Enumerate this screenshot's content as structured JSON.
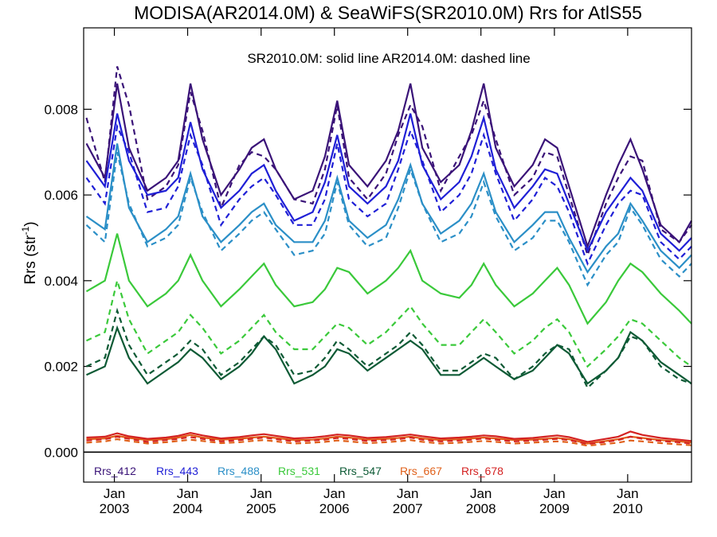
{
  "chart_data": {
    "type": "line",
    "title": "MODISA(AR2014.0M) & SeaWiFS(SR2010.0M)  Rrs for AtlS55",
    "annotation": "SR2010.0M: solid line   AR2014.0M: dashed line",
    "ylabel_main": "Rrs (str",
    "ylabel_sup": "-1",
    "ylabel_close": ")",
    "ylim": [
      -0.0007,
      0.0099
    ],
    "yticks": [
      {
        "value": 0.0,
        "label": "0.000"
      },
      {
        "value": 0.002,
        "label": "0.002"
      },
      {
        "value": 0.004,
        "label": "0.004"
      },
      {
        "value": 0.006,
        "label": "0.006"
      },
      {
        "value": 0.008,
        "label": "0.008"
      }
    ],
    "xlim": [
      "2002-08-01",
      "2010-11-15"
    ],
    "xticks": [
      {
        "date": "2003-01-01",
        "month": "Jan",
        "year": "2003"
      },
      {
        "date": "2004-01-01",
        "month": "Jan",
        "year": "2004"
      },
      {
        "date": "2005-01-01",
        "month": "Jan",
        "year": "2005"
      },
      {
        "date": "2006-01-01",
        "month": "Jan",
        "year": "2006"
      },
      {
        "date": "2007-01-01",
        "month": "Jan",
        "year": "2007"
      },
      {
        "date": "2008-01-01",
        "month": "Jan",
        "year": "2008"
      },
      {
        "date": "2009-01-01",
        "month": "Jan",
        "year": "2009"
      },
      {
        "date": "2010-01-01",
        "month": "Jan",
        "year": "2010"
      }
    ],
    "legend_placement": "bottom",
    "dates": [
      "2002-08",
      "2002-11",
      "2003-01",
      "2003-03",
      "2003-06",
      "2003-09",
      "2003-11",
      "2004-01",
      "2004-03",
      "2004-06",
      "2004-09",
      "2004-11",
      "2005-01",
      "2005-03",
      "2005-06",
      "2005-09",
      "2005-11",
      "2006-01",
      "2006-03",
      "2006-06",
      "2006-09",
      "2006-11",
      "2007-01",
      "2007-03",
      "2007-06",
      "2007-09",
      "2007-11",
      "2008-01",
      "2008-03",
      "2008-06",
      "2008-09",
      "2008-11",
      "2009-01",
      "2009-03",
      "2009-06",
      "2009-09",
      "2009-11",
      "2010-01",
      "2010-03",
      "2010-06",
      "2010-09",
      "2010-11"
    ],
    "series": [
      {
        "name": "Rrs_412",
        "color": "#3a1378",
        "solid": [
          0.0072,
          0.0064,
          0.0086,
          0.0071,
          0.0061,
          0.0064,
          0.0068,
          0.0086,
          0.0073,
          0.006,
          0.0066,
          0.0071,
          0.0073,
          0.0066,
          0.0059,
          0.0061,
          0.0069,
          0.0082,
          0.0067,
          0.0062,
          0.0068,
          0.0075,
          0.0086,
          0.0071,
          0.0063,
          0.0067,
          0.0075,
          0.0086,
          0.0071,
          0.0062,
          0.0067,
          0.0073,
          0.0071,
          0.0062,
          0.0048,
          0.006,
          0.0067,
          0.0073,
          0.0066,
          0.0053,
          0.0049,
          0.0054
        ],
        "dashed": [
          0.0078,
          0.0063,
          0.009,
          0.0081,
          0.0059,
          0.0062,
          0.0067,
          0.0084,
          0.0075,
          0.0057,
          0.0067,
          0.007,
          0.0069,
          0.0066,
          0.0059,
          0.0058,
          0.0066,
          0.0081,
          0.0064,
          0.0059,
          0.0065,
          0.0074,
          0.0081,
          0.0076,
          0.0061,
          0.0069,
          0.0074,
          0.0082,
          0.0073,
          0.006,
          0.0064,
          0.007,
          0.0069,
          0.006,
          0.0046,
          0.0058,
          0.0064,
          0.0069,
          0.0068,
          0.0052,
          0.0049,
          0.0053
        ]
      },
      {
        "name": "Rrs_443",
        "color": "#1f1fd6",
        "solid": [
          0.0068,
          0.0062,
          0.0079,
          0.0068,
          0.006,
          0.0061,
          0.0064,
          0.0077,
          0.0066,
          0.0057,
          0.0061,
          0.0065,
          0.0067,
          0.0061,
          0.0054,
          0.0056,
          0.0063,
          0.0074,
          0.0062,
          0.0058,
          0.0062,
          0.0068,
          0.0079,
          0.0067,
          0.0059,
          0.0063,
          0.0069,
          0.0078,
          0.0066,
          0.0057,
          0.0062,
          0.0066,
          0.0065,
          0.0058,
          0.0047,
          0.0056,
          0.006,
          0.0064,
          0.0061,
          0.0051,
          0.0047,
          0.005
        ],
        "dashed": [
          0.0064,
          0.0058,
          0.0076,
          0.007,
          0.0056,
          0.0057,
          0.0062,
          0.0074,
          0.0067,
          0.0053,
          0.0059,
          0.0062,
          0.0064,
          0.006,
          0.0053,
          0.0053,
          0.0059,
          0.0072,
          0.0059,
          0.0055,
          0.0058,
          0.0066,
          0.0075,
          0.0068,
          0.0056,
          0.006,
          0.0065,
          0.0074,
          0.0065,
          0.0054,
          0.0059,
          0.0064,
          0.0062,
          0.0056,
          0.0044,
          0.0053,
          0.0058,
          0.0061,
          0.006,
          0.0049,
          0.0045,
          0.0048
        ]
      },
      {
        "name": "Rrs_488",
        "color": "#2b8fc7",
        "solid": [
          0.0055,
          0.0052,
          0.0072,
          0.0057,
          0.0049,
          0.0052,
          0.0055,
          0.0065,
          0.0055,
          0.0049,
          0.0053,
          0.0056,
          0.0058,
          0.0053,
          0.0049,
          0.0049,
          0.0054,
          0.0064,
          0.0054,
          0.005,
          0.0053,
          0.0059,
          0.0067,
          0.0058,
          0.0051,
          0.0054,
          0.0058,
          0.0065,
          0.0056,
          0.0049,
          0.0053,
          0.0056,
          0.0056,
          0.005,
          0.0042,
          0.0048,
          0.0051,
          0.0058,
          0.0054,
          0.0047,
          0.0043,
          0.0046
        ],
        "dashed": [
          0.0053,
          0.0049,
          0.007,
          0.0058,
          0.0048,
          0.005,
          0.0053,
          0.0064,
          0.0056,
          0.0047,
          0.0051,
          0.0054,
          0.0056,
          0.0052,
          0.0046,
          0.0047,
          0.0051,
          0.0063,
          0.0053,
          0.0048,
          0.005,
          0.0057,
          0.0066,
          0.0058,
          0.0049,
          0.0051,
          0.0055,
          0.0063,
          0.0055,
          0.0047,
          0.005,
          0.0054,
          0.0054,
          0.0049,
          0.0039,
          0.0046,
          0.0049,
          0.0057,
          0.0053,
          0.0045,
          0.0041,
          0.0044
        ]
      },
      {
        "name": "Rrs_531",
        "color": "#3ac93a",
        "solid": [
          0.00375,
          0.004,
          0.0051,
          0.004,
          0.0034,
          0.0037,
          0.004,
          0.0046,
          0.004,
          0.0034,
          0.0038,
          0.0041,
          0.0044,
          0.0039,
          0.0034,
          0.0035,
          0.0038,
          0.0043,
          0.0042,
          0.0037,
          0.004,
          0.0043,
          0.0047,
          0.004,
          0.0037,
          0.0036,
          0.0039,
          0.0044,
          0.0039,
          0.0034,
          0.0037,
          0.004,
          0.0043,
          0.0039,
          0.003,
          0.0035,
          0.004,
          0.0044,
          0.0042,
          0.0037,
          0.0033,
          0.003
        ],
        "dashed": [
          0.0026,
          0.0028,
          0.004,
          0.0031,
          0.0023,
          0.0026,
          0.0028,
          0.0032,
          0.0029,
          0.0023,
          0.0026,
          0.0029,
          0.0032,
          0.0028,
          0.0024,
          0.0024,
          0.0027,
          0.003,
          0.0029,
          0.0025,
          0.0028,
          0.0031,
          0.0034,
          0.003,
          0.0025,
          0.0025,
          0.0028,
          0.0031,
          0.0028,
          0.0023,
          0.0026,
          0.0029,
          0.0031,
          0.0028,
          0.002,
          0.0024,
          0.0027,
          0.0031,
          0.003,
          0.0026,
          0.0022,
          0.002
        ]
      },
      {
        "name": "Rrs_547",
        "color": "#0d5a35",
        "solid": [
          0.0018,
          0.002,
          0.0029,
          0.0022,
          0.0016,
          0.0019,
          0.0021,
          0.0024,
          0.0022,
          0.0017,
          0.002,
          0.0023,
          0.0027,
          0.0024,
          0.0016,
          0.0018,
          0.002,
          0.0024,
          0.0023,
          0.0019,
          0.0022,
          0.0024,
          0.0026,
          0.0024,
          0.0018,
          0.0018,
          0.002,
          0.0022,
          0.002,
          0.0017,
          0.0019,
          0.0022,
          0.0025,
          0.0023,
          0.0016,
          0.0019,
          0.0022,
          0.0028,
          0.0026,
          0.0021,
          0.0018,
          0.0016
        ],
        "dashed": [
          0.002,
          0.0022,
          0.0033,
          0.0025,
          0.0018,
          0.0021,
          0.0023,
          0.0026,
          0.0024,
          0.0018,
          0.0021,
          0.0024,
          0.0027,
          0.0025,
          0.0018,
          0.0019,
          0.0022,
          0.0026,
          0.0024,
          0.002,
          0.0023,
          0.0025,
          0.0028,
          0.0025,
          0.0019,
          0.0019,
          0.0021,
          0.0023,
          0.0022,
          0.0017,
          0.002,
          0.0023,
          0.0025,
          0.0024,
          0.0015,
          0.0019,
          0.0022,
          0.0027,
          0.0026,
          0.002,
          0.0017,
          0.0016
        ]
      },
      {
        "name": "Rrs_667",
        "color": "#e0601a",
        "solid": [
          0.0003,
          0.00032,
          0.00038,
          0.00033,
          0.00028,
          0.0003,
          0.00034,
          0.0004,
          0.00034,
          0.00029,
          0.00031,
          0.00034,
          0.00036,
          0.00033,
          0.00028,
          0.00029,
          0.00032,
          0.00036,
          0.00034,
          0.00029,
          0.00031,
          0.00033,
          0.00036,
          0.00032,
          0.00028,
          0.0003,
          0.00032,
          0.00034,
          0.00032,
          0.00028,
          0.00029,
          0.00031,
          0.00033,
          0.0003,
          0.0002,
          0.00026,
          0.0003,
          0.00036,
          0.00033,
          0.00028,
          0.00025,
          0.00022
        ],
        "dashed": [
          0.00022,
          0.00025,
          0.0003,
          0.00026,
          0.0002,
          0.00023,
          0.00026,
          0.00029,
          0.00026,
          0.00021,
          0.00023,
          0.00026,
          0.00028,
          0.00025,
          0.0002,
          0.00022,
          0.00024,
          0.00027,
          0.00025,
          0.00021,
          0.00023,
          0.00025,
          0.00028,
          0.00024,
          0.0002,
          0.00022,
          0.00024,
          0.00026,
          0.00024,
          0.0002,
          0.00022,
          0.00024,
          0.00025,
          0.00023,
          0.00015,
          0.00019,
          0.00022,
          0.00027,
          0.00025,
          0.00021,
          0.00018,
          0.00016
        ]
      },
      {
        "name": "Rrs_678",
        "color": "#d42222",
        "solid": [
          0.00034,
          0.00036,
          0.00044,
          0.00037,
          0.00031,
          0.00034,
          0.00038,
          0.00045,
          0.00039,
          0.00032,
          0.00035,
          0.00039,
          0.00042,
          0.00038,
          0.00032,
          0.00034,
          0.00037,
          0.00041,
          0.00039,
          0.00033,
          0.00035,
          0.00038,
          0.00041,
          0.00037,
          0.00032,
          0.00034,
          0.00036,
          0.00039,
          0.00037,
          0.00031,
          0.00033,
          0.00036,
          0.00039,
          0.00035,
          0.00024,
          0.00031,
          0.00036,
          0.00048,
          0.0004,
          0.00033,
          0.00029,
          0.00026
        ],
        "dashed": [
          0.00027,
          0.0003,
          0.00036,
          0.00031,
          0.00024,
          0.00028,
          0.00031,
          0.00035,
          0.00031,
          0.00025,
          0.00028,
          0.00031,
          0.00034,
          0.0003,
          0.00025,
          0.00027,
          0.00029,
          0.00033,
          0.00031,
          0.00026,
          0.00028,
          0.0003,
          0.00034,
          0.00029,
          0.00025,
          0.00027,
          0.00029,
          0.00032,
          0.00029,
          0.00025,
          0.00027,
          0.00029,
          0.00031,
          0.00028,
          0.00019,
          0.00024,
          0.00028,
          0.00036,
          0.00031,
          0.00026,
          0.00023,
          0.0002
        ]
      }
    ]
  }
}
